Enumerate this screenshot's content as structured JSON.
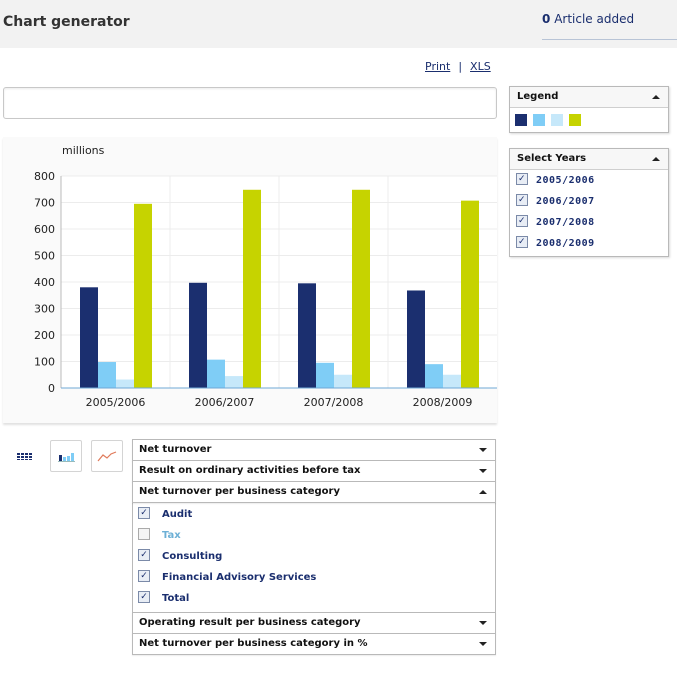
{
  "header": {
    "title": "Chart generator",
    "article_count": "0",
    "article_text": "Article added"
  },
  "actions": {
    "print": "Print",
    "separator": "|",
    "xls": "XLS"
  },
  "legend": {
    "title": "Legend",
    "colors": [
      "#1b2f6f",
      "#7fcdf6",
      "#c6e8fa",
      "#c6d300"
    ]
  },
  "years_panel": {
    "title": "Select Years",
    "years": [
      {
        "label": "2005/2006",
        "checked": true
      },
      {
        "label": "2006/2007",
        "checked": true
      },
      {
        "label": "2007/2008",
        "checked": true
      },
      {
        "label": "2008/2009",
        "checked": true
      }
    ]
  },
  "chart_data": {
    "type": "bar",
    "ylabel": "millions",
    "ylim": [
      0,
      800
    ],
    "yticks": [
      "0",
      "100",
      "200",
      "300",
      "400",
      "500",
      "600",
      "700",
      "800"
    ],
    "categories": [
      "2005/2006",
      "2006/2007",
      "2007/2008",
      "2008/2009"
    ],
    "series": [
      {
        "color": "#1b2f6f",
        "values": [
          380,
          397,
          395,
          368
        ]
      },
      {
        "color": "#7fcdf6",
        "values": [
          98,
          107,
          95,
          90
        ]
      },
      {
        "color": "#c6e8fa",
        "values": [
          32,
          45,
          50,
          50
        ]
      },
      {
        "color": "#c6d300",
        "values": [
          695,
          748,
          748,
          707
        ]
      }
    ]
  },
  "view_buttons": [
    {
      "icon": "table-view-icon"
    },
    {
      "icon": "bar-chart-view-icon"
    },
    {
      "icon": "line-chart-view-icon"
    }
  ],
  "accordion": {
    "sections_top": [
      "Net turnover",
      "Result on ordinary activities before tax"
    ],
    "open_section": {
      "title": "Net turnover per business category",
      "items": [
        {
          "label": "Audit",
          "checked": true,
          "enabled": true
        },
        {
          "label": "Tax",
          "checked": false,
          "enabled": false
        },
        {
          "label": "Consulting",
          "checked": true,
          "enabled": true
        },
        {
          "label": "Financial Advisory Services",
          "checked": true,
          "enabled": true
        },
        {
          "label": "Total",
          "checked": true,
          "enabled": true
        }
      ]
    },
    "sections_bottom": [
      "Operating result per business category",
      "Net turnover per business category in %"
    ]
  }
}
